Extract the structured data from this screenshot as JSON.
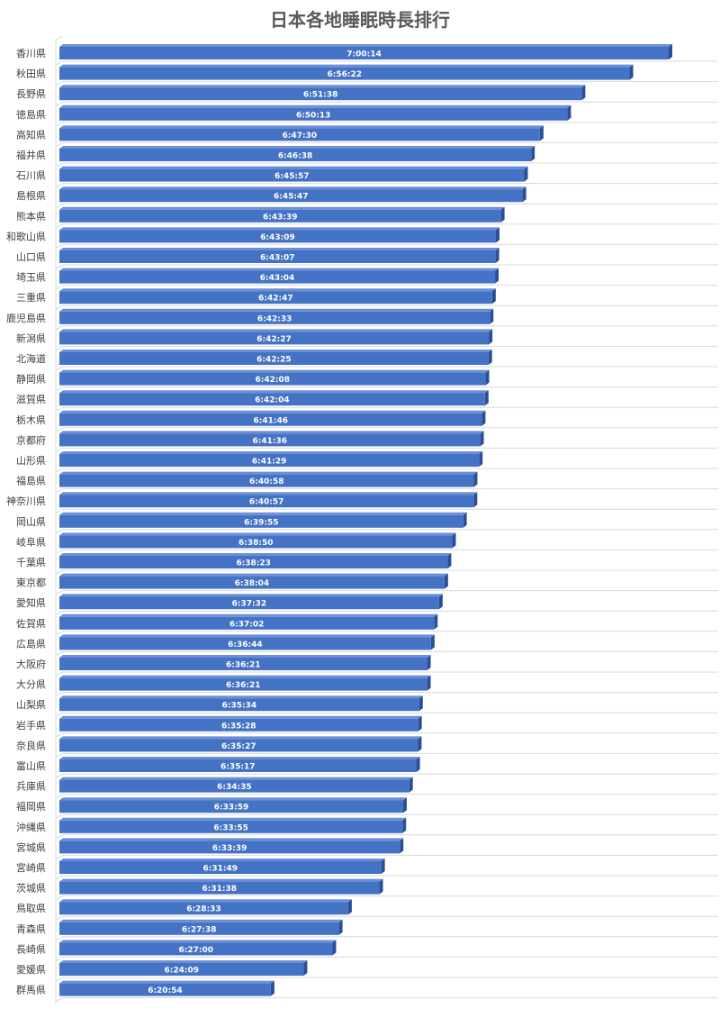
{
  "chart_data": {
    "type": "bar",
    "orientation": "horizontal",
    "title": "日本各地睡眠時長排行",
    "xlabel": "",
    "ylabel": "",
    "grid": true,
    "colors": {
      "bar_front": "#4472C4",
      "bar_top": "#6a8fd6",
      "bar_side": "#2c4f94",
      "grid": "#d9d9d9",
      "label": "#404040",
      "title": "#595959"
    },
    "categories": [
      "香川県",
      "秋田県",
      "長野県",
      "徳島県",
      "高知県",
      "福井県",
      "石川県",
      "島根県",
      "熊本県",
      "和歌山県",
      "山口県",
      "埼玉県",
      "三重県",
      "鹿児島県",
      "新潟県",
      "北海道",
      "静岡県",
      "滋賀県",
      "栃木県",
      "京都府",
      "山形県",
      "福島県",
      "神奈川県",
      "岡山県",
      "岐阜県",
      "千葉県",
      "東京都",
      "愛知県",
      "佐賀県",
      "広島県",
      "大阪府",
      "大分県",
      "山梨県",
      "岩手県",
      "奈良県",
      "富山県",
      "兵庫県",
      "福岡県",
      "沖縄県",
      "宮城県",
      "宮崎県",
      "茨城県",
      "鳥取県",
      "青森県",
      "長崎県",
      "愛媛県",
      "群馬県"
    ],
    "labels": [
      "7:00:14",
      "6:56:22",
      "6:51:38",
      "6:50:13",
      "6:47:30",
      "6:46:38",
      "6:45:57",
      "6:45:47",
      "6:43:39",
      "6:43:09",
      "6:43:07",
      "6:43:04",
      "6:42:47",
      "6:42:33",
      "6:42:27",
      "6:42:25",
      "6:42:08",
      "6:42:04",
      "6:41:46",
      "6:41:36",
      "6:41:29",
      "6:40:58",
      "6:40:57",
      "6:39:55",
      "6:38:50",
      "6:38:23",
      "6:38:04",
      "6:37:32",
      "6:37:02",
      "6:36:44",
      "6:36:21",
      "6:36:21",
      "6:35:34",
      "6:35:28",
      "6:35:27",
      "6:35:17",
      "6:34:35",
      "6:33:59",
      "6:33:55",
      "6:33:39",
      "6:31:49",
      "6:31:38",
      "6:28:33",
      "6:27:38",
      "6:27:00",
      "6:24:09",
      "6:20:54"
    ]
  }
}
